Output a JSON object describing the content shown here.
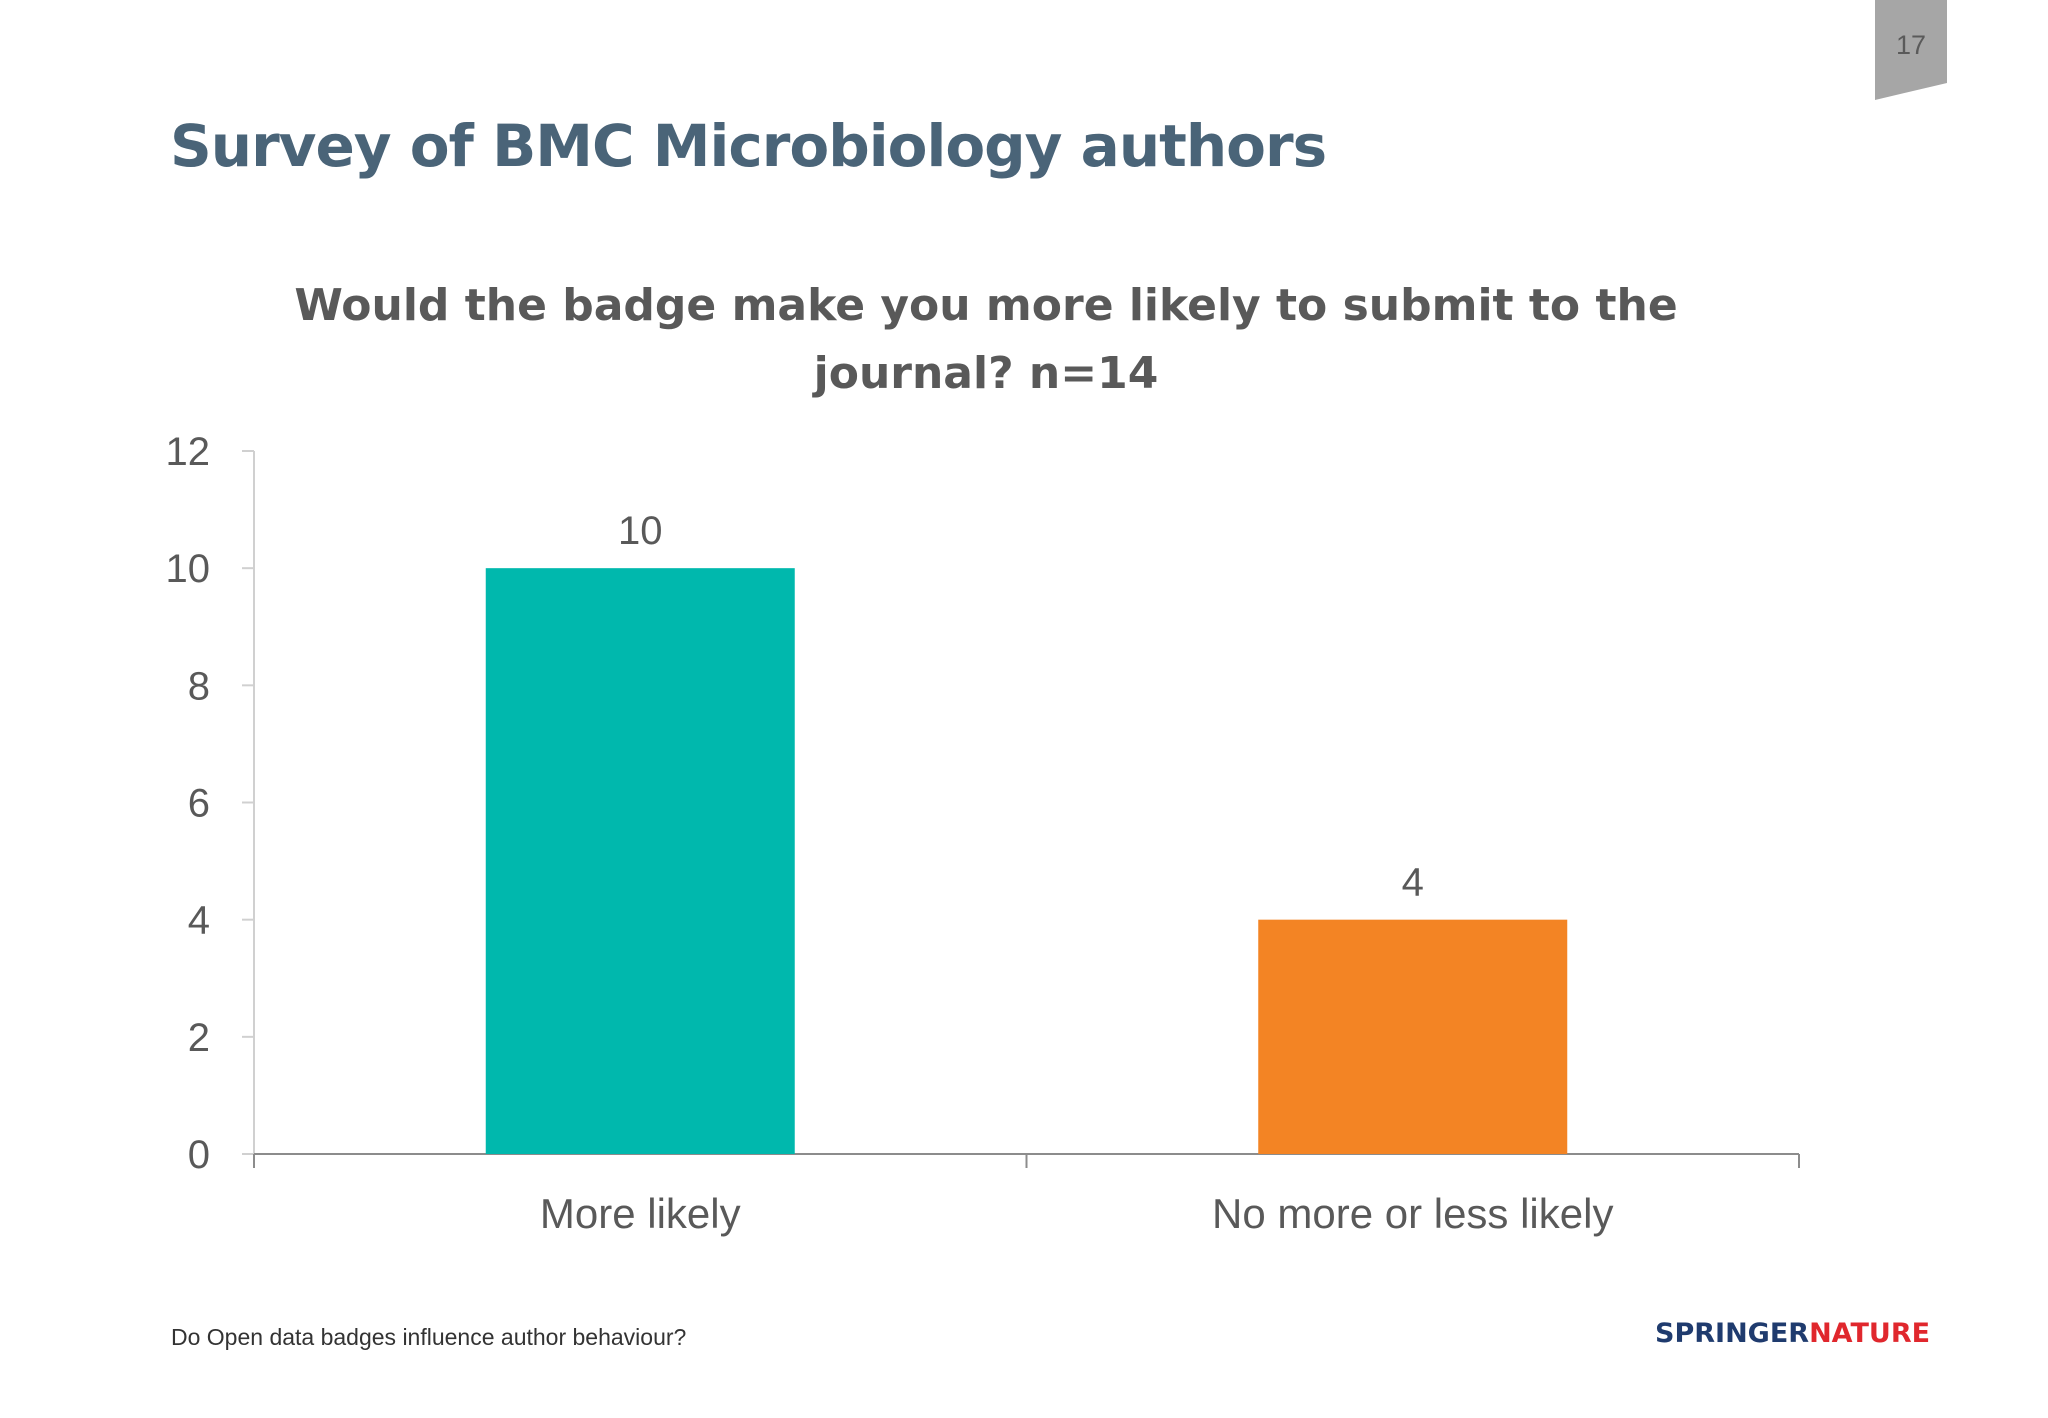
{
  "slide": {
    "title": "Survey of BMC Microbiology authors",
    "page_number": "17",
    "footer": "Do Open data badges influence author behaviour?",
    "logo": {
      "part1": "SPRINGER",
      "part2": "NATURE"
    }
  },
  "chart_data": {
    "type": "bar",
    "title": "Would the badge make you more likely to submit to the journal? n=14",
    "title_lines": [
      "Would the badge make you more likely to submit to the",
      "journal? n=14"
    ],
    "categories": [
      "More likely",
      "No more or less likely"
    ],
    "values": [
      10,
      4
    ],
    "data_labels": [
      "10",
      "4"
    ],
    "colors": [
      "#00b8ad",
      "#f38424"
    ],
    "ylim": [
      0,
      12
    ],
    "yticks": [
      0,
      2,
      4,
      6,
      8,
      10,
      12
    ],
    "xlabel": "",
    "ylabel": "",
    "grid": false,
    "legend": "none"
  }
}
